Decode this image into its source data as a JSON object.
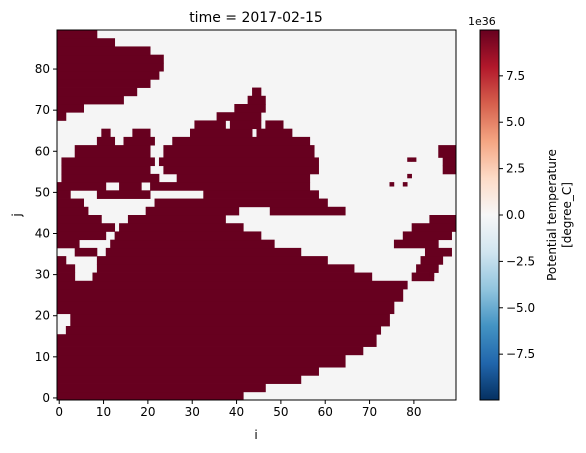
{
  "chart_data": {
    "type": "heatmap",
    "title": "time = 2017-02-15",
    "xlabel": "i",
    "ylabel": "j",
    "xlim": [
      -0.5,
      89.5
    ],
    "ylim": [
      -0.5,
      89.5
    ],
    "xticks": [
      0,
      10,
      20,
      30,
      40,
      50,
      60,
      70,
      80
    ],
    "yticks": [
      0,
      10,
      20,
      30,
      40,
      50,
      60,
      70,
      80
    ],
    "colors": {
      "fill": "#67001f",
      "background": "#f5f5f5"
    },
    "note_values": "Dark red cells carry fill value ~9.97e36; light cells are near 0.",
    "mask_rows_j": [
      {
        "j_from": 0,
        "j_to": 1,
        "spans": [
          [
            0,
            41
          ]
        ]
      },
      {
        "j_from": 2,
        "j_to": 3,
        "spans": [
          [
            0,
            46
          ]
        ]
      },
      {
        "j_from": 4,
        "j_to": 5,
        "spans": [
          [
            0,
            54
          ]
        ]
      },
      {
        "j_from": 6,
        "j_to": 7,
        "spans": [
          [
            0,
            58
          ]
        ]
      },
      {
        "j_from": 8,
        "j_to": 10,
        "spans": [
          [
            0,
            64
          ]
        ]
      },
      {
        "j_from": 11,
        "j_to": 12,
        "spans": [
          [
            0,
            68
          ]
        ]
      },
      {
        "j_from": 13,
        "j_to": 15,
        "spans": [
          [
            0,
            71
          ]
        ]
      },
      {
        "j_from": 16,
        "j_to": 17,
        "spans": [
          [
            2,
            72
          ]
        ]
      },
      {
        "j_from": 18,
        "j_to": 20,
        "spans": [
          [
            3,
            74
          ]
        ]
      },
      {
        "j_from": 21,
        "j_to": 23,
        "spans": [
          [
            0,
            75
          ]
        ]
      },
      {
        "j_from": 24,
        "j_to": 26,
        "spans": [
          [
            0,
            77
          ]
        ]
      },
      {
        "j_from": 27,
        "j_to": 28,
        "spans": [
          [
            0,
            78
          ]
        ]
      },
      {
        "j_from": 29,
        "j_to": 30,
        "spans": [
          [
            0,
            3
          ],
          [
            8,
            70
          ],
          [
            80,
            84
          ]
        ]
      },
      {
        "j_from": 31,
        "j_to": 32,
        "spans": [
          [
            0,
            3
          ],
          [
            9,
            66
          ],
          [
            81,
            85
          ]
        ]
      },
      {
        "j_from": 33,
        "j_to": 34,
        "spans": [
          [
            0,
            1
          ],
          [
            9,
            60
          ],
          [
            82,
            86
          ]
        ]
      },
      {
        "j_from": 35,
        "j_to": 36,
        "spans": [
          [
            4,
            8
          ],
          [
            11,
            54
          ],
          [
            83,
            88
          ]
        ]
      },
      {
        "j_from": 37,
        "j_to": 38,
        "spans": [
          [
            0,
            4
          ],
          [
            12,
            48
          ],
          [
            76,
            85
          ]
        ]
      },
      {
        "j_from": 39,
        "j_to": 40,
        "spans": [
          [
            0,
            10
          ],
          [
            13,
            45
          ],
          [
            78,
            88
          ]
        ]
      },
      {
        "j_from": 41,
        "j_to": 42,
        "spans": [
          [
            0,
            12
          ],
          [
            14,
            41
          ],
          [
            80,
            89
          ]
        ]
      },
      {
        "j_from": 43,
        "j_to": 44,
        "spans": [
          [
            0,
            9
          ],
          [
            16,
            37
          ],
          [
            84,
            89
          ]
        ]
      },
      {
        "j_from": 45,
        "j_to": 46,
        "spans": [
          [
            0,
            6
          ],
          [
            20,
            40
          ],
          [
            48,
            64
          ]
        ]
      },
      {
        "j_from": 47,
        "j_to": 48,
        "spans": [
          [
            0,
            5
          ],
          [
            22,
            60
          ]
        ]
      },
      {
        "j_from": 49,
        "j_to": 50,
        "spans": [
          [
            0,
            2
          ],
          [
            9,
            20
          ],
          [
            33,
            58
          ]
        ]
      },
      {
        "j_from": 51,
        "j_to": 52,
        "spans": [
          [
            0,
            10
          ],
          [
            14,
            18
          ],
          [
            21,
            56
          ]
        ]
      },
      {
        "j_from": 53,
        "j_to": 54,
        "spans": [
          [
            1,
            22
          ],
          [
            27,
            56
          ]
        ]
      },
      {
        "j_from": 55,
        "j_to": 56,
        "spans": [
          [
            1,
            20
          ],
          [
            24,
            58
          ],
          [
            87,
            89
          ]
        ]
      },
      {
        "j_from": 57,
        "j_to": 58,
        "spans": [
          [
            1,
            21
          ],
          [
            23,
            58
          ],
          [
            87,
            89
          ]
        ]
      },
      {
        "j_from": 59,
        "j_to": 61,
        "spans": [
          [
            4,
            20
          ],
          [
            24,
            57
          ],
          [
            86,
            89
          ]
        ]
      },
      {
        "j_from": 62,
        "j_to": 63,
        "spans": [
          [
            9,
            12
          ],
          [
            15,
            21
          ],
          [
            26,
            56
          ]
        ]
      },
      {
        "j_from": 64,
        "j_to": 65,
        "spans": [
          [
            10,
            11
          ],
          [
            17,
            20
          ],
          [
            30,
            43
          ],
          [
            45,
            52
          ]
        ]
      },
      {
        "j_from": 66,
        "j_to": 67,
        "spans": [
          [
            31,
            37
          ],
          [
            39,
            45
          ],
          [
            47,
            50
          ]
        ]
      },
      {
        "j_from": 68,
        "j_to": 69,
        "spans": [
          [
            0,
            1
          ],
          [
            36,
            45
          ]
        ]
      },
      {
        "j_from": 70,
        "j_to": 71,
        "spans": [
          [
            0,
            5
          ],
          [
            40,
            46
          ]
        ]
      },
      {
        "j_from": 72,
        "j_to": 73,
        "spans": [
          [
            0,
            14
          ],
          [
            43,
            46
          ]
        ]
      },
      {
        "j_from": 74,
        "j_to": 75,
        "spans": [
          [
            0,
            17
          ],
          [
            44,
            45
          ]
        ]
      },
      {
        "j_from": 76,
        "j_to": 77,
        "spans": [
          [
            0,
            20
          ]
        ]
      },
      {
        "j_from": 78,
        "j_to": 79,
        "spans": [
          [
            0,
            22
          ]
        ]
      },
      {
        "j_from": 80,
        "j_to": 81,
        "spans": [
          [
            0,
            23
          ]
        ]
      },
      {
        "j_from": 82,
        "j_to": 83,
        "spans": [
          [
            0,
            23
          ]
        ]
      },
      {
        "j_from": 84,
        "j_to": 85,
        "spans": [
          [
            0,
            20
          ]
        ]
      },
      {
        "j_from": 86,
        "j_to": 87,
        "spans": [
          [
            0,
            12
          ]
        ]
      },
      {
        "j_from": 88,
        "j_to": 89,
        "spans": [
          [
            0,
            8
          ]
        ]
      }
    ],
    "small_islands": [
      {
        "i": 75,
        "j": 52
      },
      {
        "i": 78,
        "j": 52
      },
      {
        "i": 79,
        "j": 54
      },
      {
        "i": 79,
        "j": 58
      },
      {
        "i": 80,
        "j": 58
      },
      {
        "i": 84,
        "j": 30
      },
      {
        "i": 85,
        "j": 32
      }
    ],
    "colorbar": {
      "label_line1": "Potential temperature",
      "label_line2": "[degree_C]",
      "exponent": "1e36",
      "vmin": -9.97,
      "vmax": 9.97,
      "ticks": [
        -7.5,
        -5.0,
        -2.5,
        0.0,
        2.5,
        5.0,
        7.5
      ],
      "tick_labels": [
        "−7.5",
        "−5.0",
        "−2.5",
        "0.0",
        "2.5",
        "5.0",
        "7.5"
      ],
      "cmap": "RdBu_r",
      "cmap_stops": [
        "#053061",
        "#2166ac",
        "#4393c3",
        "#92c5de",
        "#d1e5f0",
        "#f7f7f7",
        "#fddbc7",
        "#f4a582",
        "#d6604d",
        "#b2182b",
        "#67001f"
      ]
    }
  }
}
